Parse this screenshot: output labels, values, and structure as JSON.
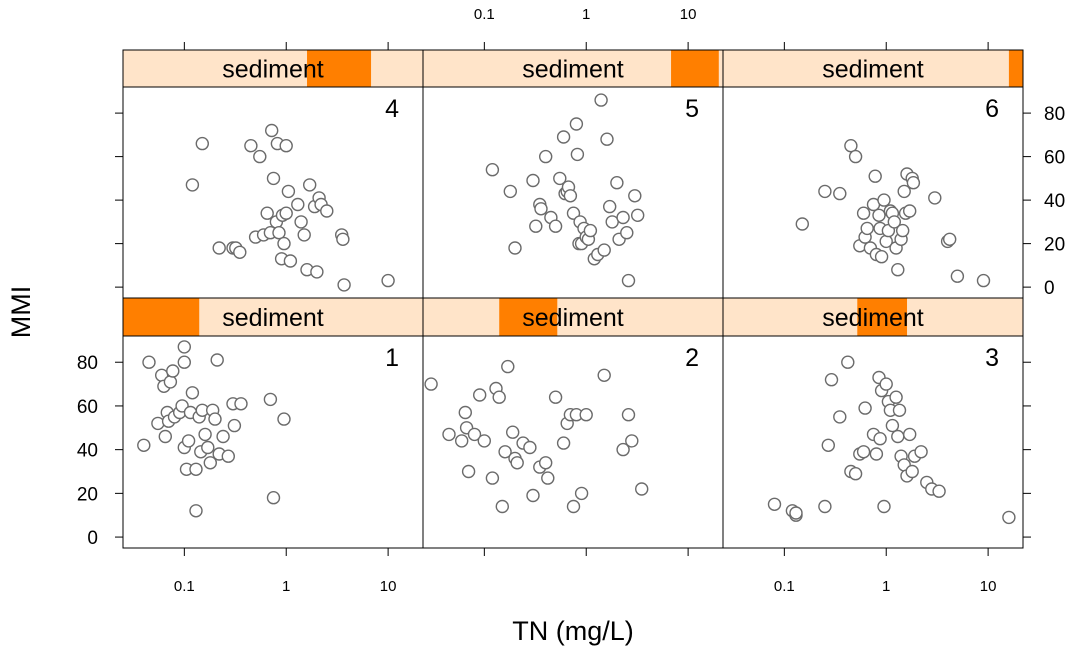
{
  "chart_data": {
    "type": "scatter",
    "xlabel": "TN (mg/L)",
    "ylabel": "MMI",
    "x_scale": "log",
    "xlim": [
      0.025,
      22
    ],
    "ylim": [
      -5,
      92
    ],
    "x_ticks": [
      0.1,
      1,
      10
    ],
    "x_tick_labels": [
      "0.1",
      "1",
      "10"
    ],
    "y_ticks": [
      0,
      20,
      40,
      60,
      80
    ],
    "y_tick_labels": [
      "0",
      "20",
      "40",
      "60",
      "80"
    ],
    "strip_label": "sediment",
    "strip_color": "#ffe4c9",
    "shingle_color": "#ff7f00",
    "grid": false,
    "panels": [
      {
        "name": "1",
        "shingle_range": [
          0.025,
          0.14
        ],
        "points": [
          [
            0.04,
            42
          ],
          [
            0.045,
            80
          ],
          [
            0.055,
            52
          ],
          [
            0.06,
            74
          ],
          [
            0.063,
            69
          ],
          [
            0.065,
            46
          ],
          [
            0.068,
            57
          ],
          [
            0.07,
            53
          ],
          [
            0.073,
            71
          ],
          [
            0.077,
            76
          ],
          [
            0.08,
            55
          ],
          [
            0.09,
            57
          ],
          [
            0.095,
            60
          ],
          [
            0.1,
            80
          ],
          [
            0.1,
            87
          ],
          [
            0.1,
            41
          ],
          [
            0.105,
            31
          ],
          [
            0.11,
            44
          ],
          [
            0.115,
            57
          ],
          [
            0.12,
            66
          ],
          [
            0.13,
            12
          ],
          [
            0.13,
            31
          ],
          [
            0.14,
            55
          ],
          [
            0.145,
            39
          ],
          [
            0.15,
            58
          ],
          [
            0.16,
            47
          ],
          [
            0.17,
            41
          ],
          [
            0.18,
            34
          ],
          [
            0.19,
            58
          ],
          [
            0.2,
            54
          ],
          [
            0.21,
            81
          ],
          [
            0.22,
            38
          ],
          [
            0.24,
            46
          ],
          [
            0.27,
            37
          ],
          [
            0.3,
            61
          ],
          [
            0.31,
            51
          ],
          [
            0.36,
            61
          ],
          [
            0.7,
            63
          ],
          [
            0.75,
            18
          ],
          [
            0.95,
            54
          ]
        ]
      },
      {
        "name": "2",
        "shingle_range": [
          0.14,
          0.52
        ],
        "points": [
          [
            0.03,
            70
          ],
          [
            0.045,
            47
          ],
          [
            0.06,
            44
          ],
          [
            0.065,
            57
          ],
          [
            0.067,
            50
          ],
          [
            0.07,
            30
          ],
          [
            0.08,
            47
          ],
          [
            0.09,
            65
          ],
          [
            0.1,
            44
          ],
          [
            0.12,
            27
          ],
          [
            0.13,
            68
          ],
          [
            0.14,
            64
          ],
          [
            0.15,
            14
          ],
          [
            0.16,
            39
          ],
          [
            0.17,
            78
          ],
          [
            0.19,
            48
          ],
          [
            0.2,
            36
          ],
          [
            0.21,
            34
          ],
          [
            0.24,
            43
          ],
          [
            0.28,
            41
          ],
          [
            0.3,
            19
          ],
          [
            0.35,
            32
          ],
          [
            0.4,
            34
          ],
          [
            0.42,
            27
          ],
          [
            0.5,
            64
          ],
          [
            0.6,
            43
          ],
          [
            0.65,
            52
          ],
          [
            0.7,
            56
          ],
          [
            0.75,
            14
          ],
          [
            0.8,
            56
          ],
          [
            0.9,
            20
          ],
          [
            1.0,
            56
          ],
          [
            1.5,
            74
          ],
          [
            2.3,
            40
          ],
          [
            2.6,
            56
          ],
          [
            2.8,
            44
          ],
          [
            3.5,
            22
          ]
        ]
      },
      {
        "name": "3",
        "shingle_range": [
          0.52,
          1.6
        ],
        "points": [
          [
            0.08,
            15
          ],
          [
            0.12,
            12
          ],
          [
            0.13,
            10
          ],
          [
            0.13,
            11
          ],
          [
            0.25,
            14
          ],
          [
            0.27,
            42
          ],
          [
            0.29,
            72
          ],
          [
            0.35,
            55
          ],
          [
            0.42,
            80
          ],
          [
            0.45,
            30
          ],
          [
            0.5,
            29
          ],
          [
            0.55,
            38
          ],
          [
            0.6,
            39
          ],
          [
            0.62,
            59
          ],
          [
            0.75,
            47
          ],
          [
            0.8,
            38
          ],
          [
            0.85,
            73
          ],
          [
            0.87,
            45
          ],
          [
            0.9,
            67
          ],
          [
            0.95,
            14
          ],
          [
            1.0,
            70
          ],
          [
            1.05,
            62
          ],
          [
            1.1,
            58
          ],
          [
            1.15,
            51
          ],
          [
            1.25,
            64
          ],
          [
            1.3,
            46
          ],
          [
            1.35,
            58
          ],
          [
            1.4,
            37
          ],
          [
            1.5,
            33
          ],
          [
            1.6,
            28
          ],
          [
            1.7,
            47
          ],
          [
            1.8,
            30
          ],
          [
            1.9,
            37
          ],
          [
            2.2,
            39
          ],
          [
            2.5,
            25
          ],
          [
            2.8,
            22
          ],
          [
            3.3,
            21
          ],
          [
            16,
            9
          ]
        ]
      },
      {
        "name": "4",
        "shingle_range": [
          1.6,
          6.8
        ],
        "points": [
          [
            0.12,
            47
          ],
          [
            0.15,
            66
          ],
          [
            0.22,
            18
          ],
          [
            0.3,
            18
          ],
          [
            0.32,
            18
          ],
          [
            0.35,
            16
          ],
          [
            0.45,
            65
          ],
          [
            0.5,
            23
          ],
          [
            0.55,
            60
          ],
          [
            0.6,
            24
          ],
          [
            0.65,
            34
          ],
          [
            0.7,
            25
          ],
          [
            0.72,
            72
          ],
          [
            0.75,
            50
          ],
          [
            0.8,
            30
          ],
          [
            0.82,
            66
          ],
          [
            0.85,
            25
          ],
          [
            0.9,
            13
          ],
          [
            0.92,
            33
          ],
          [
            0.95,
            20
          ],
          [
            1.0,
            65
          ],
          [
            1.0,
            34
          ],
          [
            1.05,
            44
          ],
          [
            1.1,
            12
          ],
          [
            1.3,
            38
          ],
          [
            1.4,
            30
          ],
          [
            1.5,
            24
          ],
          [
            1.6,
            8
          ],
          [
            1.7,
            47
          ],
          [
            1.9,
            37
          ],
          [
            2.0,
            7
          ],
          [
            2.1,
            41
          ],
          [
            2.2,
            38
          ],
          [
            2.5,
            35
          ],
          [
            3.5,
            24
          ],
          [
            3.6,
            22
          ],
          [
            3.7,
            1
          ],
          [
            10,
            3
          ]
        ]
      },
      {
        "name": "5",
        "shingle_range": [
          6.8,
          20
        ],
        "points": [
          [
            0.12,
            54
          ],
          [
            0.18,
            44
          ],
          [
            0.2,
            18
          ],
          [
            0.3,
            49
          ],
          [
            0.32,
            28
          ],
          [
            0.35,
            38
          ],
          [
            0.36,
            36
          ],
          [
            0.4,
            60
          ],
          [
            0.45,
            32
          ],
          [
            0.5,
            28
          ],
          [
            0.55,
            50
          ],
          [
            0.6,
            69
          ],
          [
            0.62,
            43
          ],
          [
            0.65,
            44
          ],
          [
            0.67,
            46
          ],
          [
            0.7,
            42
          ],
          [
            0.75,
            34
          ],
          [
            0.8,
            75
          ],
          [
            0.82,
            61
          ],
          [
            0.85,
            20
          ],
          [
            0.87,
            30
          ],
          [
            0.9,
            20
          ],
          [
            0.95,
            27
          ],
          [
            1.0,
            23
          ],
          [
            1.05,
            22
          ],
          [
            1.1,
            26
          ],
          [
            1.2,
            13
          ],
          [
            1.3,
            15
          ],
          [
            1.4,
            86
          ],
          [
            1.5,
            17
          ],
          [
            1.6,
            68
          ],
          [
            1.7,
            37
          ],
          [
            1.8,
            30
          ],
          [
            2.0,
            48
          ],
          [
            2.1,
            22
          ],
          [
            2.3,
            32
          ],
          [
            2.5,
            25
          ],
          [
            2.6,
            3
          ],
          [
            3.0,
            42
          ],
          [
            3.2,
            33
          ]
        ]
      },
      {
        "name": "6",
        "shingle_range": [
          16,
          22
        ],
        "points": [
          [
            0.15,
            29
          ],
          [
            0.25,
            44
          ],
          [
            0.35,
            43
          ],
          [
            0.45,
            65
          ],
          [
            0.5,
            60
          ],
          [
            0.55,
            19
          ],
          [
            0.6,
            34
          ],
          [
            0.62,
            23
          ],
          [
            0.65,
            27
          ],
          [
            0.7,
            18
          ],
          [
            0.75,
            38
          ],
          [
            0.78,
            51
          ],
          [
            0.8,
            15
          ],
          [
            0.85,
            33
          ],
          [
            0.87,
            27
          ],
          [
            0.9,
            14
          ],
          [
            0.95,
            40
          ],
          [
            1.0,
            21
          ],
          [
            1.05,
            26
          ],
          [
            1.1,
            35
          ],
          [
            1.15,
            34
          ],
          [
            1.2,
            30
          ],
          [
            1.25,
            18
          ],
          [
            1.3,
            8
          ],
          [
            1.4,
            22
          ],
          [
            1.45,
            26
          ],
          [
            1.5,
            44
          ],
          [
            1.55,
            34
          ],
          [
            1.6,
            52
          ],
          [
            1.7,
            35
          ],
          [
            1.8,
            50
          ],
          [
            1.85,
            48
          ],
          [
            3.0,
            41
          ],
          [
            4.0,
            21
          ],
          [
            4.2,
            22
          ],
          [
            5.0,
            5
          ],
          [
            9.0,
            3
          ]
        ]
      }
    ]
  }
}
